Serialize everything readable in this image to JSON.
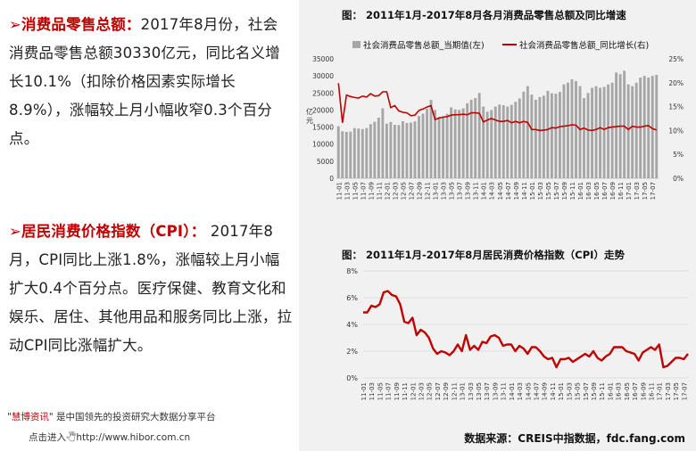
{
  "left_panel": {
    "p1_arrow": "➢",
    "p1_head": "消费品零售总额：",
    "p1_text": "2017年8月份，社会消费品零售总额30330亿元，同比名义增长10.1%（扣除价格因素实际增长8.9%），涨幅较上月小幅收窄0.3个百分点。",
    "p2_arrow": "➢",
    "p2_head": "居民消费价格指数（CPI）：",
    "p2_text": " 2017年8月，CPI同比上涨1.8%，涨幅较上月小幅扩大0.4个百分点。医疗保健、教育文化和娱乐、居住、其他用品和服务同比上涨，拉动CPI同比涨幅扩大。",
    "ad_quote_open": "\"",
    "ad_brand": "慧博资讯",
    "ad_rest": "\" 是中国领先的投资研究大数据分享平台",
    "ad_link": "点击进入🖑http://www.hibor.com.cn"
  },
  "source": "数据来源：CREIS中指数据，fdc.fang.com",
  "colors": {
    "bar": "#a6a6a6",
    "line": "#c00000",
    "panel_bg": "#f1f1f1",
    "head": "#c00000"
  },
  "chart_data": [
    {
      "type": "bar",
      "title": "图： 2011年1月-2017年8月各月消费品零售总额及同比增速",
      "ylabel": "亿元",
      "ylim_left": [
        0,
        35000
      ],
      "ylim_right": [
        0,
        25
      ],
      "yticks_left": [
        "0",
        "5000",
        "10000",
        "15000",
        "20000",
        "25000",
        "30000",
        "35000"
      ],
      "yticks_right": [
        "0%",
        "5%",
        "10%",
        "15%",
        "20%",
        "25%"
      ],
      "x_ticks": [
        "11-01",
        "11-03",
        "11-05",
        "11-07",
        "11-09",
        "11-11",
        "12-01",
        "12-03",
        "12-05",
        "12-07",
        "12-09",
        "12-11",
        "13-01",
        "13-03",
        "13-05",
        "13-07",
        "13-09",
        "13-11",
        "14-01",
        "14-03",
        "14-05",
        "14-07",
        "14-09",
        "14-11",
        "15-01",
        "15-03",
        "15-05",
        "15-07",
        "15-09",
        "15-11",
        "16-01",
        "16-03",
        "16-05",
        "16-07",
        "16-09",
        "16-11",
        "17-01",
        "17-03",
        "17-05",
        "17-07"
      ],
      "series": [
        {
          "name": "社会消费品零售总额_当期值(左)",
          "values": [
            15250,
            13770,
            13588,
            13649,
            14697,
            14565,
            14408,
            14705,
            15865,
            16547,
            17740,
            20509,
            16000,
            16500,
            15650,
            15603,
            16715,
            16189,
            16315,
            16659,
            18227,
            18934,
            20335,
            23000,
            20000,
            18000,
            18100,
            18886,
            20769,
            20171,
            20035,
            20493,
            22000,
            23000,
            23500,
            25000,
            21000,
            19500,
            20000,
            21000,
            21600,
            21400,
            21000,
            21500,
            22400,
            23400,
            25400,
            27000,
            24500,
            23000,
            23800,
            24200,
            25600,
            24900,
            24800,
            25300,
            27500,
            28000,
            29000,
            28500,
            27000,
            23500,
            25000,
            26500,
            27000,
            26500,
            26800,
            27500,
            28000,
            31000,
            30500,
            31500,
            27500,
            27000,
            28000,
            29500,
            30000,
            29500,
            30000,
            30330
          ]
        },
        {
          "name": "社会消费品零售总额_同比增长(右)",
          "values": [
            19.9,
            11.6,
            17.4,
            17.1,
            16.9,
            16.8,
            17.2,
            17.0,
            17.7,
            17.2,
            17.3,
            18.1,
            18.1,
            14.8,
            15.2,
            14.1,
            13.8,
            13.7,
            13.1,
            13.2,
            14.2,
            14.5,
            14.9,
            15.2,
            12.3,
            12.6,
            12.8,
            12.9,
            13.2,
            13.3,
            13.3,
            13.4,
            13.3,
            13.7,
            13.7,
            13.6,
            11.8,
            12.2,
            12.5,
            12.2,
            11.9,
            11.9,
            12.1,
            11.6,
            11.9,
            11.6,
            11.9,
            11.7,
            10.2,
            10.2,
            10.0,
            10.1,
            10.2,
            10.6,
            10.5,
            10.8,
            10.9,
            11.0,
            11.2,
            11.1,
            10.2,
            10.5,
            10.1,
            10.0,
            10.2,
            10.6,
            10.2,
            10.6,
            10.7,
            10.8,
            10.9,
            10.9,
            10.2,
            10.9,
            10.7,
            10.7,
            10.9,
            11.0,
            10.4,
            10.1
          ]
        }
      ]
    },
    {
      "type": "line",
      "title": "图： 2011年1月-2017年8月居民消费价格指数（CPI）走势",
      "ylim": [
        0,
        8
      ],
      "yticks": [
        "0%",
        "2%",
        "4%",
        "6%",
        "8%"
      ],
      "x_ticks": [
        "11-01",
        "11-03",
        "11-05",
        "11-07",
        "11-09",
        "11-11",
        "12-01",
        "12-03",
        "12-05",
        "12-07",
        "12-09",
        "12-11",
        "13-01",
        "13-03",
        "13-05",
        "13-07",
        "13-09",
        "13-11",
        "14-01",
        "14-03",
        "14-05",
        "14-07",
        "14-09",
        "14-11",
        "15-01",
        "15-03",
        "15-05",
        "15-07",
        "15-09",
        "15-11",
        "16-01",
        "16-03",
        "16-05",
        "16-07",
        "16-09",
        "16-11",
        "17-01",
        "17-03",
        "17-05",
        "17-07"
      ],
      "series": [
        {
          "name": "",
          "values": [
            4.9,
            4.9,
            5.4,
            5.3,
            5.5,
            6.4,
            6.5,
            6.2,
            6.1,
            5.5,
            4.2,
            4.1,
            4.5,
            3.2,
            3.6,
            3.4,
            3.0,
            2.2,
            1.8,
            2.0,
            1.9,
            1.7,
            2.0,
            2.5,
            2.0,
            3.2,
            2.1,
            2.4,
            2.1,
            2.7,
            2.6,
            3.1,
            3.2,
            3.0,
            2.4,
            2.5,
            2.5,
            2.0,
            2.4,
            2.2,
            1.8,
            2.3,
            2.3,
            2.0,
            1.6,
            1.4,
            1.5,
            0.8,
            1.4,
            1.4,
            1.5,
            1.2,
            1.4,
            1.6,
            1.8,
            1.6,
            2.0,
            1.5,
            1.3,
            1.6,
            1.8,
            2.3,
            2.3,
            2.3,
            2.0,
            1.9,
            1.8,
            1.3,
            1.9,
            2.1,
            2.3,
            2.1,
            2.5,
            0.8,
            0.9,
            1.2,
            1.5,
            1.5,
            1.4,
            1.8
          ]
        }
      ]
    }
  ]
}
